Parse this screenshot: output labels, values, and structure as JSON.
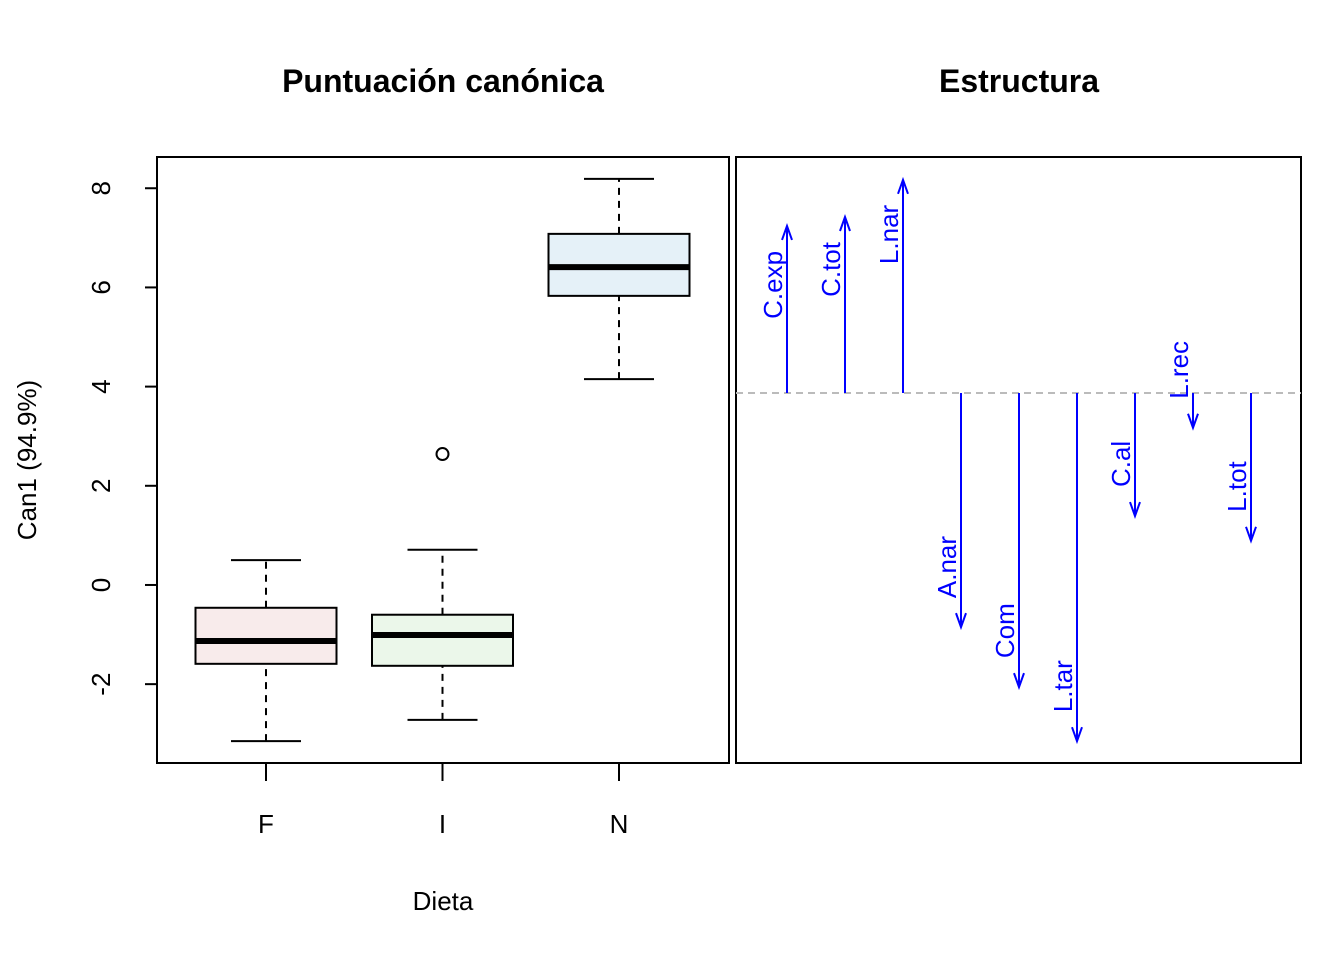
{
  "chart_data": [
    {
      "type": "box",
      "title": "Puntuación canónica",
      "xlabel": "Dieta",
      "ylabel": "Can1 (94.9%)",
      "categories": [
        "F",
        "I",
        "N"
      ],
      "colors": [
        "#f8ebeb",
        "#ebf7ea",
        "#e5f1f8"
      ],
      "boxes": [
        {
          "min": -3.15,
          "q1": -1.59,
          "median": -1.13,
          "q3": -0.46,
          "max": 0.5,
          "outliers": []
        },
        {
          "min": -2.72,
          "q1": -1.63,
          "median": -1.01,
          "q3": -0.6,
          "max": 0.71,
          "outliers": [
            2.64
          ]
        },
        {
          "min": 4.15,
          "q1": 5.83,
          "median": 6.41,
          "q3": 7.08,
          "max": 8.19,
          "outliers": []
        }
      ],
      "ylim": [
        -3.59,
        8.63
      ],
      "yticks": [
        -2,
        0,
        2,
        4,
        6,
        8
      ]
    },
    {
      "type": "arrows",
      "title": "Estructura",
      "color": "#0000ff",
      "origin": 3.87,
      "ylim": [
        -3.59,
        8.63
      ],
      "labels": [
        "C.exp",
        "C.tot",
        "L.nar",
        "A.nar",
        "Com",
        "L.tar",
        "C.al",
        "L.rec",
        "L.tot"
      ],
      "values": [
        7.24,
        7.42,
        8.17,
        -0.85,
        -2.06,
        -3.15,
        1.39,
        3.17,
        0.89
      ]
    }
  ]
}
